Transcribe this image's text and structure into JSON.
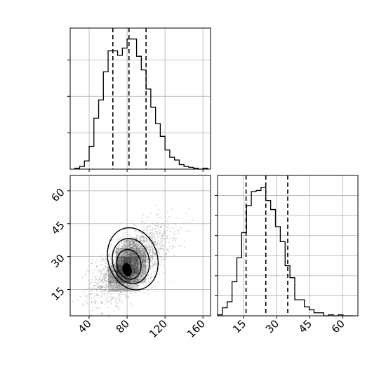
{
  "chart_data": [
    {
      "type": "histogram",
      "panel": "marginal-x",
      "xlim": [
        20,
        168
      ],
      "grid": true,
      "bins": [
        25,
        30,
        35,
        40,
        45,
        50,
        55,
        60,
        65,
        70,
        75,
        80,
        85,
        90,
        95,
        100,
        105,
        110,
        115,
        120,
        125,
        130,
        135,
        140,
        145,
        150,
        155,
        160,
        165
      ],
      "counts": [
        1,
        3,
        9,
        25,
        56,
        76,
        107,
        130,
        130,
        125,
        133,
        143,
        143,
        124,
        109,
        88,
        68,
        50,
        36,
        21,
        13,
        10,
        5,
        3,
        2,
        1,
        0,
        1
      ],
      "quantile_lines": [
        65,
        82,
        100
      ],
      "ylim": [
        0,
        155
      ]
    },
    {
      "type": "histogram2d_contour",
      "panel": "joint",
      "xlim": [
        20,
        168
      ],
      "ylim": [
        3,
        67
      ],
      "grid": true,
      "x_ticks": [
        "40",
        "80",
        "120",
        "160"
      ],
      "y_ticks": [
        "15",
        "30",
        "45",
        "60"
      ],
      "density_center": [
        80,
        24
      ],
      "contour_levels": [
        {
          "center": [
            86,
            29
          ],
          "rx": 50,
          "ry": 16,
          "rotation": 0.7
        },
        {
          "center": [
            84,
            28
          ],
          "rx": 37,
          "ry": 11.5,
          "rotation": 0.68
        },
        {
          "center": [
            82,
            26.5
          ],
          "rx": 24,
          "ry": 7.5,
          "rotation": 0.65
        },
        {
          "center": [
            80,
            24
          ],
          "rx": 8,
          "ry": 3,
          "rotation": 0.5
        }
      ]
    },
    {
      "type": "histogram",
      "panel": "marginal-y",
      "xlim": [
        3,
        67
      ],
      "grid": true,
      "x_ticks": [
        "15",
        "30",
        "45",
        "60"
      ],
      "bins": [
        3,
        5.2,
        7.4,
        9.6,
        11.8,
        14,
        16.2,
        18.4,
        20.6,
        22.8,
        25,
        27.2,
        29.4,
        31.6,
        33.8,
        36,
        38.2,
        40.4,
        42.6,
        44.8,
        47,
        49.2,
        51.4,
        53.6,
        55.8,
        58,
        60.2,
        62.4,
        64.6
      ],
      "counts": [
        1,
        8,
        14,
        34,
        58,
        83,
        110,
        124,
        125,
        128,
        115,
        106,
        89,
        74,
        50,
        38,
        16,
        16,
        9,
        6,
        3,
        3,
        0,
        1,
        0,
        1,
        0,
        0
      ],
      "quantile_lines": [
        16,
        25,
        35
      ],
      "ylim": [
        0,
        140
      ]
    }
  ]
}
